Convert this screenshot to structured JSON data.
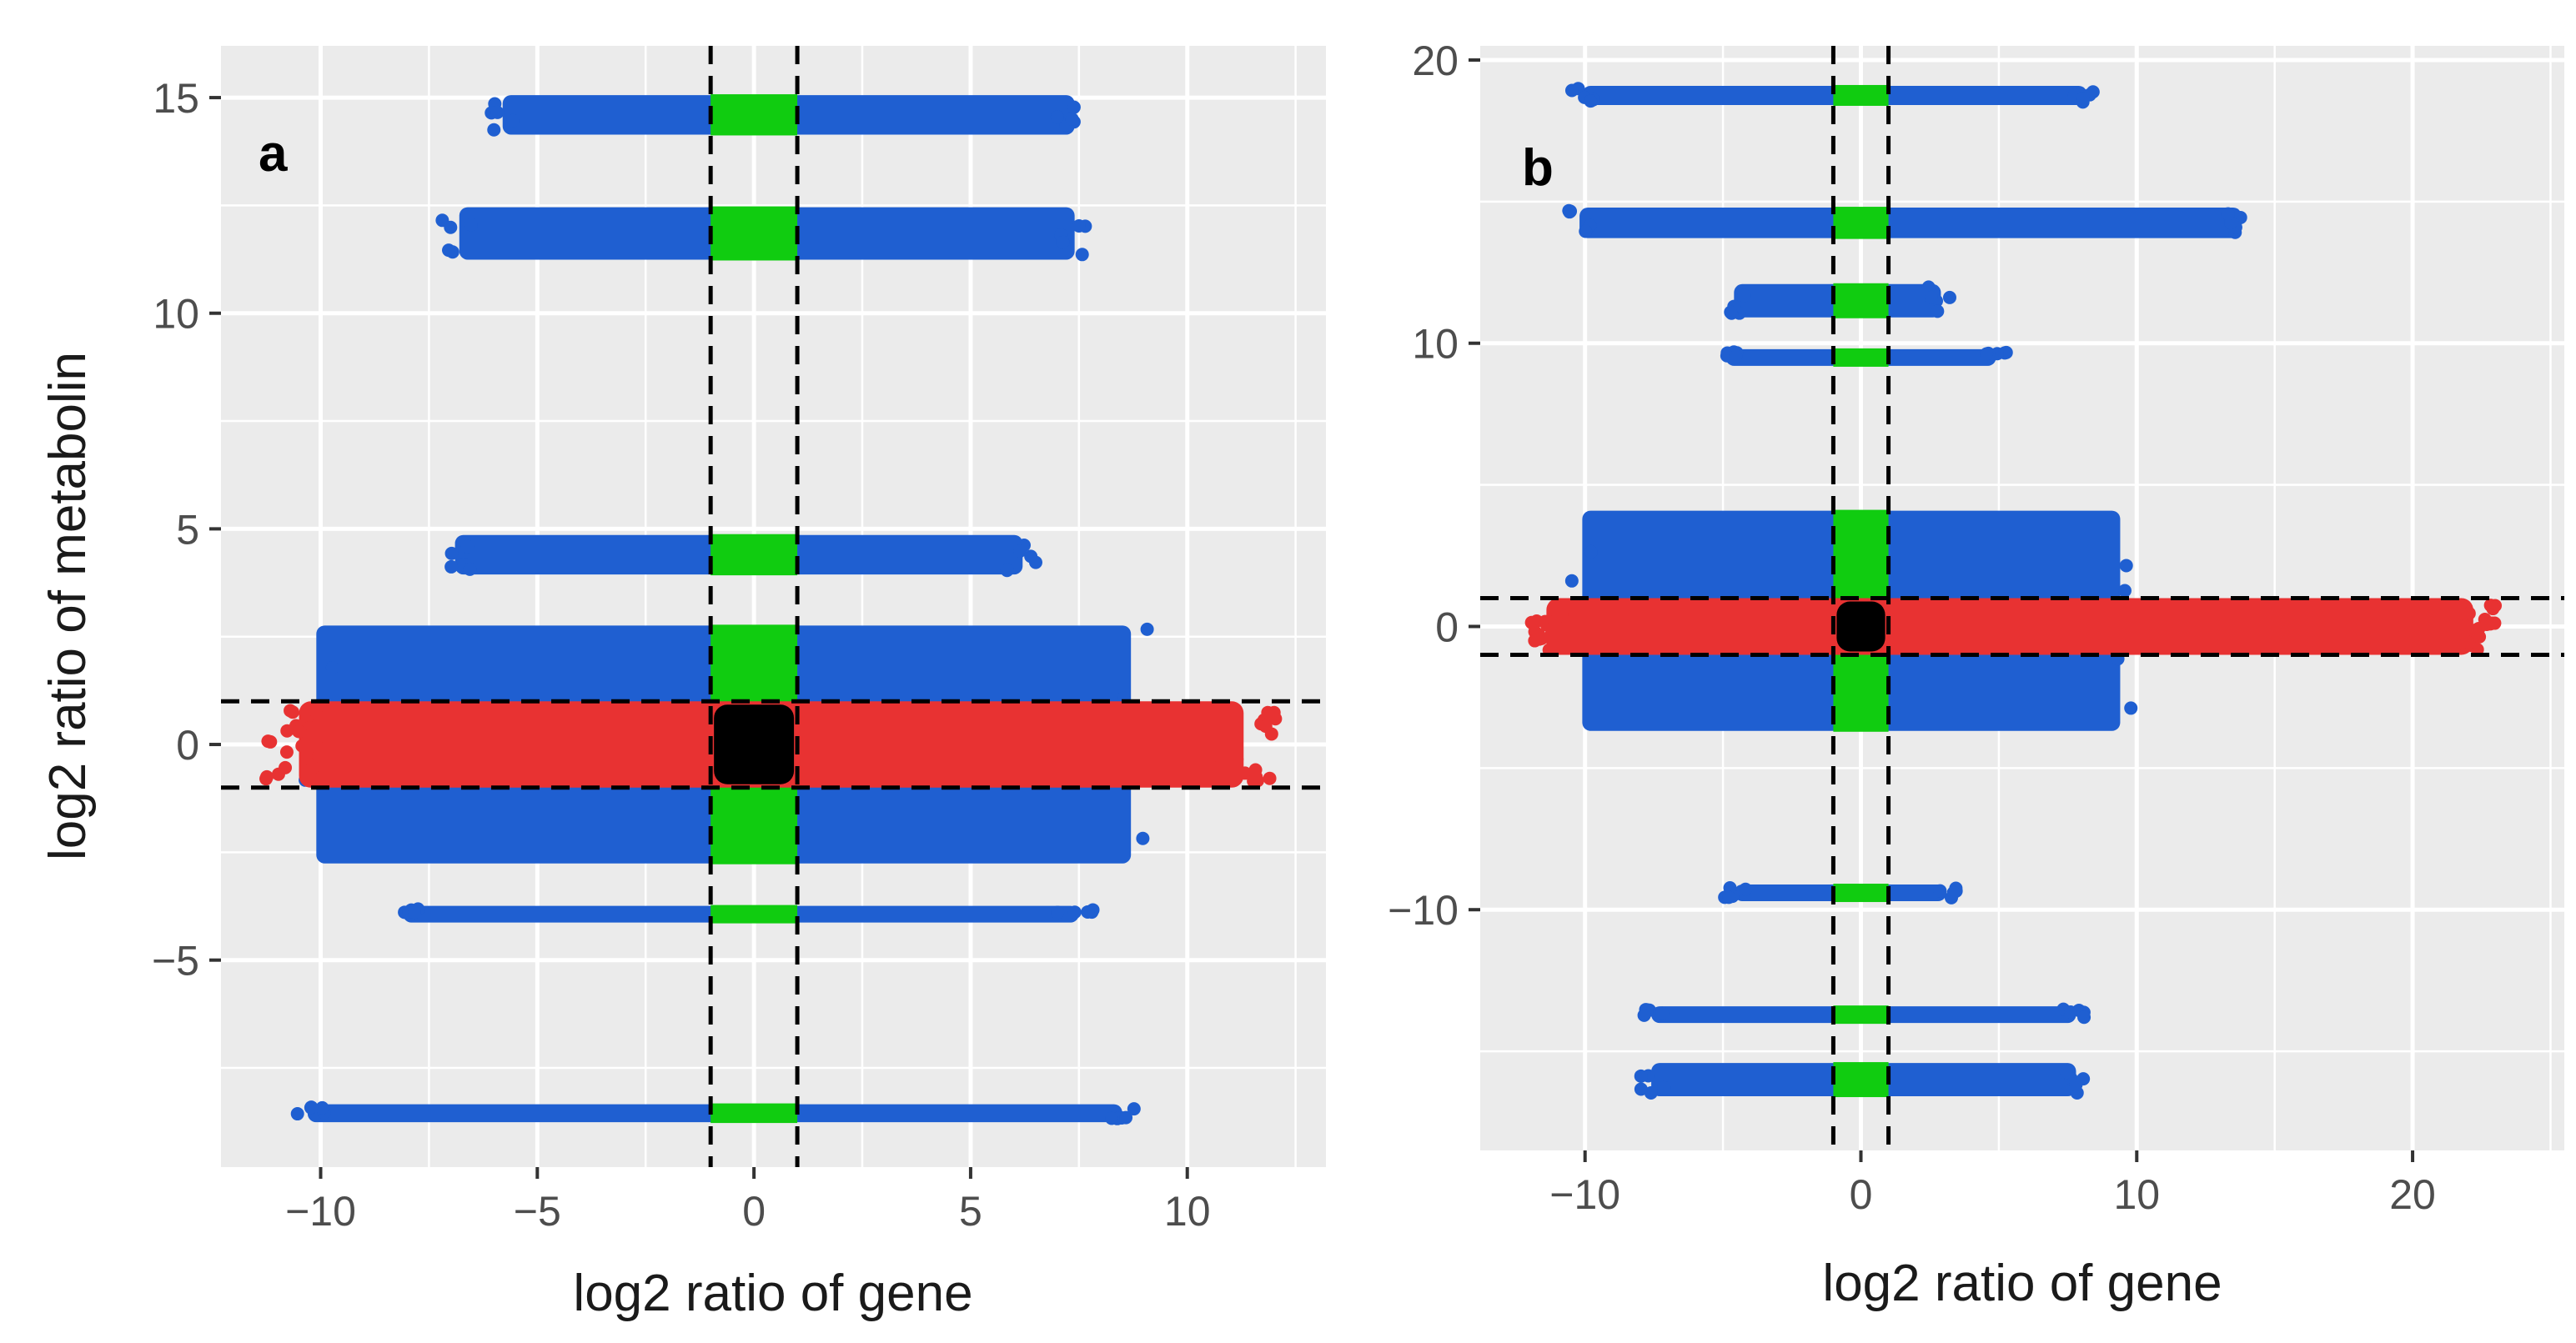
{
  "colors": {
    "panel_bg": "#ebebeb",
    "grid": "#ffffff",
    "gene_only": "#1f5fd1",
    "metabolite_only": "#e83232",
    "gene_within_threshold": "#10cc10",
    "both_within_threshold": "#000000",
    "threshold_line": "#000000"
  },
  "chart_data": [
    {
      "type": "scatter",
      "panel_label": "a",
      "xlabel": "log2 ratio of gene",
      "ylabel": "log2 ratio of metabolin",
      "xlim": [
        -12.3,
        13.2
      ],
      "ylim": [
        -9.8,
        16.2
      ],
      "x_ticks": [
        -10,
        -5,
        0,
        5,
        10
      ],
      "x_tick_labels": [
        "−10",
        "−5",
        "0",
        "5",
        "10"
      ],
      "y_ticks": [
        -5,
        0,
        5,
        10,
        15
      ],
      "y_tick_labels": [
        "−5",
        "0",
        "5",
        "10",
        "15"
      ],
      "grid": true,
      "thresholds": {
        "x": [
          -1,
          1
        ],
        "y": [
          -1,
          1
        ]
      },
      "bands": [
        {
          "y": [
            14.2,
            15.0
          ],
          "x_blue": [
            -6.2,
            7.8
          ]
        },
        {
          "y": [
            11.3,
            12.4
          ],
          "x_blue": [
            -7.2,
            7.8
          ]
        },
        {
          "y": [
            4.0,
            4.8
          ],
          "x_blue": [
            -7.3,
            6.6
          ]
        },
        {
          "y": [
            -2.7,
            2.7
          ],
          "x_blue": [
            -10.5,
            9.1
          ]
        },
        {
          "y": [
            -3.9,
            -3.8
          ],
          "x_blue": [
            -8.5,
            7.9
          ]
        },
        {
          "y": [
            -8.7,
            -8.4
          ],
          "x_blue": [
            -10.7,
            8.9
          ]
        }
      ],
      "red_band": {
        "x": [
          -11.3,
          12.1
        ],
        "y": [
          -1.0,
          1.0
        ]
      },
      "black_core": {
        "x": [
          -1.0,
          1.0
        ],
        "y": [
          -1.0,
          1.0
        ]
      }
    },
    {
      "type": "scatter",
      "panel_label": "b",
      "xlabel": "log2 ratio of gene",
      "ylabel": "",
      "xlim": [
        -13.8,
        25.5
      ],
      "ylim": [
        -18.5,
        20.5
      ],
      "x_ticks": [
        -10,
        0,
        10,
        20
      ],
      "x_tick_labels": [
        "−10",
        "0",
        "10",
        "20"
      ],
      "y_ticks": [
        -10,
        0,
        10,
        20
      ],
      "y_tick_labels": [
        "−10",
        "0",
        "10",
        "20"
      ],
      "grid": true,
      "thresholds": {
        "x": [
          -1,
          1
        ],
        "y": [
          -1,
          1
        ]
      },
      "bands": [
        {
          "y": [
            18.5,
            19.0
          ],
          "x_blue": [
            -10.5,
            8.6
          ]
        },
        {
          "y": [
            13.8,
            14.7
          ],
          "x_blue": [
            -10.6,
            14.2
          ]
        },
        {
          "y": [
            11.0,
            12.0
          ],
          "x_blue": [
            -5.0,
            3.3
          ]
        },
        {
          "y": [
            9.5,
            9.7
          ],
          "x_blue": [
            -5.3,
            5.3
          ]
        },
        {
          "y": [
            -3.6,
            4.0
          ],
          "x_blue": [
            -10.5,
            9.8
          ]
        },
        {
          "y": [
            -9.6,
            -9.2
          ],
          "x_blue": [
            -5.0,
            3.5
          ]
        },
        {
          "y": [
            -13.8,
            -13.5
          ],
          "x_blue": [
            -8.0,
            8.2
          ]
        },
        {
          "y": [
            -16.5,
            -15.5
          ],
          "x_blue": [
            -8.0,
            8.2
          ]
        }
      ],
      "red_band": {
        "x": [
          -12.2,
          23.0
        ],
        "y": [
          -1.0,
          1.0
        ]
      },
      "black_core": {
        "x": [
          -1.0,
          1.0
        ],
        "y": [
          -1.0,
          1.0
        ]
      }
    }
  ]
}
